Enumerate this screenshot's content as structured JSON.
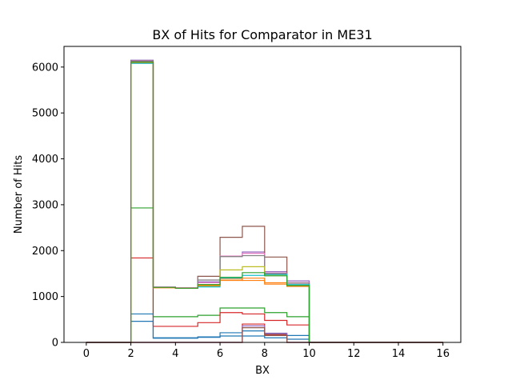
{
  "chart_data": {
    "type": "step-histogram",
    "title": "BX of Hits for Comparator in ME31",
    "xlabel": "BX",
    "ylabel": "Number of Hits",
    "xlim": [
      -1,
      16.8
    ],
    "ylim": [
      0,
      6450
    ],
    "xticks": [
      0,
      2,
      4,
      6,
      8,
      10,
      12,
      14,
      16
    ],
    "yticks": [
      0,
      1000,
      2000,
      3000,
      4000,
      5000,
      6000
    ],
    "bin_edges": [
      0,
      1,
      2,
      3,
      4,
      5,
      6,
      7,
      8,
      9,
      10,
      11,
      12,
      13,
      14,
      15,
      16
    ],
    "grid": false,
    "legend": "none",
    "series": [
      {
        "color": "#1f77b4",
        "values": [
          0,
          0,
          460,
          100,
          100,
          120,
          140,
          140,
          100,
          70,
          0,
          0,
          0,
          0,
          0,
          0
        ]
      },
      {
        "color": "#ff7f0e",
        "values": [
          0,
          0,
          6100,
          1200,
          1190,
          1260,
          1380,
          1350,
          1270,
          1220,
          0,
          0,
          0,
          0,
          0,
          0
        ]
      },
      {
        "color": "#2ca02c",
        "values": [
          0,
          0,
          2930,
          560,
          560,
          590,
          750,
          750,
          650,
          560,
          0,
          0,
          0,
          0,
          0,
          0
        ]
      },
      {
        "color": "#d62728",
        "values": [
          0,
          0,
          1840,
          350,
          350,
          430,
          650,
          620,
          480,
          380,
          0,
          0,
          0,
          0,
          0,
          0
        ]
      },
      {
        "color": "#9467bd",
        "values": [
          0,
          0,
          6150,
          1210,
          1190,
          1320,
          1880,
          1970,
          1540,
          1340,
          0,
          0,
          0,
          0,
          0,
          0
        ]
      },
      {
        "color": "#8c564b",
        "values": [
          0,
          0,
          6130,
          1200,
          1180,
          1440,
          2290,
          2530,
          1860,
          1300,
          0,
          0,
          0,
          0,
          0,
          0
        ]
      },
      {
        "color": "#e377c2",
        "values": [
          0,
          0,
          6120,
          1210,
          1190,
          1300,
          1880,
          1940,
          1510,
          1300,
          0,
          0,
          0,
          0,
          0,
          0
        ]
      },
      {
        "color": "#7f7f7f",
        "values": [
          0,
          0,
          6110,
          1200,
          1180,
          1360,
          1870,
          1890,
          1500,
          1290,
          0,
          0,
          0,
          0,
          0,
          0
        ]
      },
      {
        "color": "#bcbd22",
        "values": [
          0,
          0,
          6090,
          1200,
          1180,
          1230,
          1580,
          1650,
          1470,
          1250,
          0,
          0,
          0,
          0,
          0,
          0
        ]
      },
      {
        "color": "#17becf",
        "values": [
          0,
          0,
          6080,
          1200,
          1180,
          1210,
          1400,
          1460,
          1480,
          1260,
          0,
          0,
          0,
          0,
          0,
          0
        ]
      },
      {
        "color": "#1f77b4",
        "values": [
          0,
          0,
          620,
          90,
          90,
          110,
          210,
          250,
          190,
          150,
          0,
          0,
          0,
          0,
          0,
          0
        ]
      },
      {
        "color": "#ff7f0e",
        "values": [
          0,
          0,
          6100,
          1190,
          1180,
          1240,
          1350,
          1400,
          1300,
          1230,
          0,
          0,
          0,
          0,
          0,
          0
        ]
      },
      {
        "color": "#2ca02c",
        "values": [
          0,
          0,
          6110,
          1200,
          1180,
          1260,
          1420,
          1520,
          1450,
          1240,
          0,
          0,
          0,
          0,
          0,
          0
        ]
      },
      {
        "color": "#d62728",
        "values": [
          0,
          0,
          0,
          0,
          0,
          0,
          0,
          400,
          170,
          0,
          0,
          0,
          0,
          0,
          0,
          0
        ]
      },
      {
        "color": "#9467bd",
        "values": [
          0,
          0,
          0,
          0,
          0,
          0,
          0,
          360,
          200,
          0,
          0,
          0,
          0,
          0,
          0,
          0
        ]
      },
      {
        "color": "#8c564b",
        "values": [
          0,
          0,
          0,
          0,
          0,
          0,
          0,
          320,
          150,
          0,
          0,
          0,
          0,
          0,
          0,
          0
        ]
      }
    ]
  }
}
